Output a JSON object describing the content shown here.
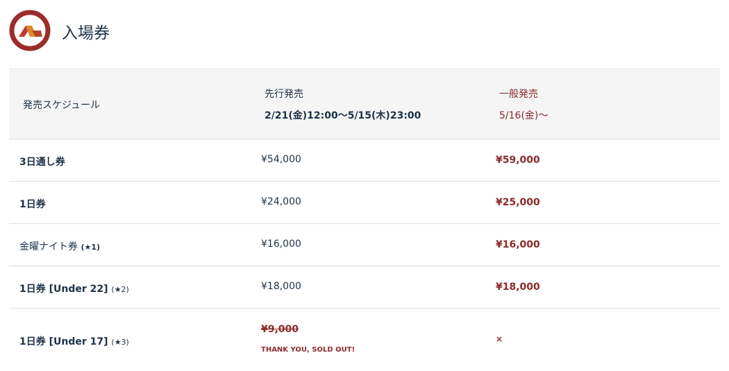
{
  "header": {
    "title": "入場券",
    "logo_icon": "festival-logo"
  },
  "colors": {
    "navy": "#1d3149",
    "accent_red": "#8c2a2a",
    "header_bg": "#f5f5f5"
  },
  "schedule": {
    "label": "発売スケジュール",
    "advance_label": "先行発売",
    "advance_period": "2/21(金)12:00〜5/15(木)23:00",
    "general_label": "一般発売",
    "general_period": "5/16(金)〜"
  },
  "rows": [
    {
      "name": "3日通し券",
      "note": "",
      "advance": "¥54,000",
      "general": "¥59,000"
    },
    {
      "name": "1日券",
      "note": "",
      "advance": "¥24,000",
      "general": "¥25,000"
    },
    {
      "name": "金曜ナイト券",
      "note": "(★1)",
      "advance": "¥16,000",
      "general": "¥16,000"
    },
    {
      "name": "1日券 [Under 22]",
      "note": "(★2)",
      "advance": "¥18,000",
      "general": "¥18,000"
    },
    {
      "name": "1日券 [Under 17]",
      "note": "(★3)",
      "advance": "¥9,000",
      "advance_status": "THANK YOU, SOLD OUT!",
      "general": "×"
    }
  ]
}
